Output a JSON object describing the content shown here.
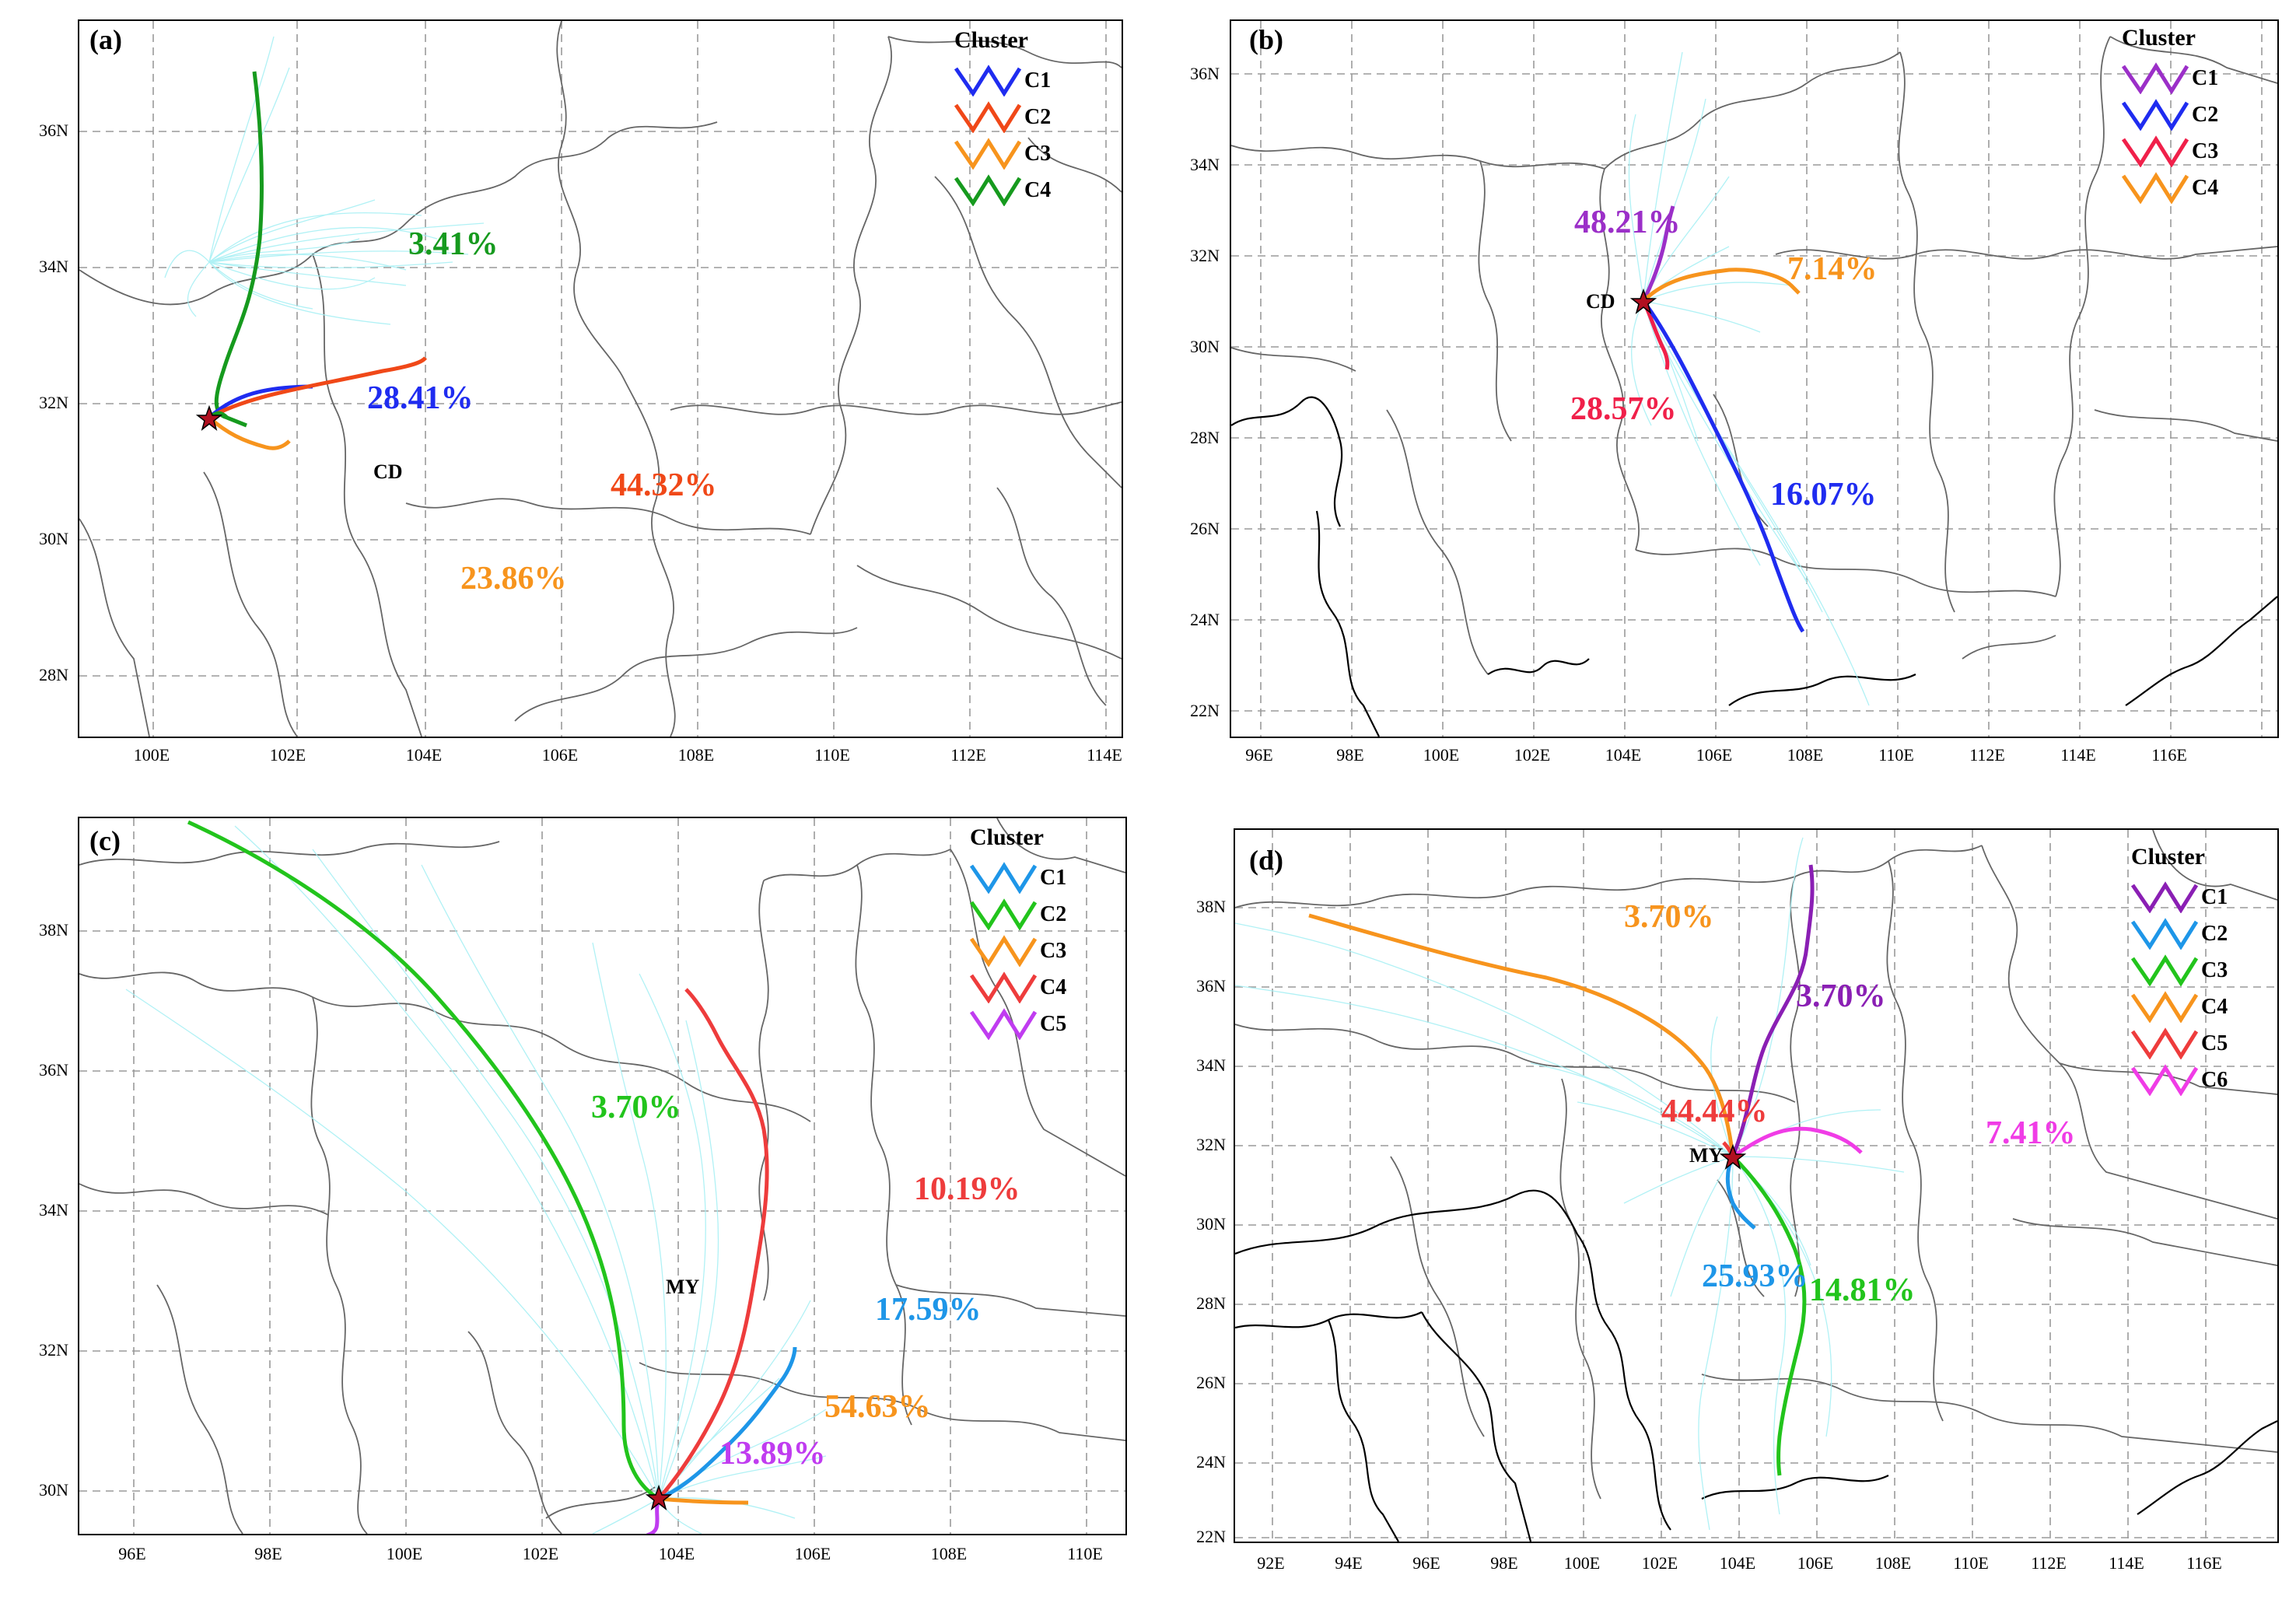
{
  "colors": {
    "background_trajectories": "#a8f0f4",
    "grid": "#9a9a9a",
    "boundary": "#555555",
    "country_border": "#000000",
    "star": "#b01020"
  },
  "panels": [
    {
      "label": "(a)",
      "site": "CD",
      "legend_title": "Cluster",
      "lon_ticks": [
        "100E",
        "102E",
        "104E",
        "106E",
        "108E",
        "110E",
        "112E",
        "114E"
      ],
      "lat_ticks": [
        "36N",
        "34N",
        "32N",
        "30N",
        "28N"
      ],
      "clusters": [
        {
          "name": "C1",
          "color": "#1f2cf0",
          "percent": "28.41%"
        },
        {
          "name": "C2",
          "color": "#f04818",
          "percent": "44.32%"
        },
        {
          "name": "C3",
          "color": "#f7941d",
          "percent": "23.86%"
        },
        {
          "name": "C4",
          "color": "#169a1e",
          "percent": "3.41%"
        }
      ]
    },
    {
      "label": "(b)",
      "site": "CD",
      "legend_title": "Cluster",
      "lon_ticks": [
        "96E",
        "98E",
        "100E",
        "102E",
        "104E",
        "106E",
        "108E",
        "110E",
        "112E",
        "114E",
        "116E"
      ],
      "lat_ticks": [
        "36N",
        "34N",
        "32N",
        "30N",
        "28N",
        "26N",
        "24N",
        "22N"
      ],
      "clusters": [
        {
          "name": "C1",
          "color": "#9b2fc8",
          "percent": "48.21%"
        },
        {
          "name": "C2",
          "color": "#1f2cf0",
          "percent": "16.07%"
        },
        {
          "name": "C3",
          "color": "#f0204a",
          "percent": "28.57%"
        },
        {
          "name": "C4",
          "color": "#f7941d",
          "percent": "7.14%"
        }
      ]
    },
    {
      "label": "(c)",
      "site": "MY",
      "legend_title": "Cluster",
      "lon_ticks": [
        "96E",
        "98E",
        "100E",
        "102E",
        "104E",
        "106E",
        "108E",
        "110E"
      ],
      "lat_ticks": [
        "38N",
        "36N",
        "34N",
        "32N",
        "30N"
      ],
      "clusters": [
        {
          "name": "C1",
          "color": "#1e96e8",
          "percent": "17.59%"
        },
        {
          "name": "C2",
          "color": "#22c41c",
          "percent": "3.70%"
        },
        {
          "name": "C3",
          "color": "#f7941d",
          "percent": "54.63%"
        },
        {
          "name": "C4",
          "color": "#ee3c3c",
          "percent": "10.19%"
        },
        {
          "name": "C5",
          "color": "#c03cf0",
          "percent": "13.89%"
        }
      ]
    },
    {
      "label": "(d)",
      "site": "MY",
      "legend_title": "Cluster",
      "lon_ticks": [
        "92E",
        "94E",
        "96E",
        "98E",
        "100E",
        "102E",
        "104E",
        "106E",
        "108E",
        "110E",
        "112E",
        "114E",
        "116E"
      ],
      "lat_ticks": [
        "38N",
        "36N",
        "34N",
        "32N",
        "30N",
        "28N",
        "26N",
        "24N",
        "22N"
      ],
      "clusters": [
        {
          "name": "C1",
          "color": "#8a1fb4",
          "percent": "3.70%"
        },
        {
          "name": "C2",
          "color": "#1e96e8",
          "percent": "25.93%"
        },
        {
          "name": "C3",
          "color": "#22c41c",
          "percent": "14.81%"
        },
        {
          "name": "C4",
          "color": "#f7941d",
          "percent": "3.70%"
        },
        {
          "name": "C5",
          "color": "#ee3c3c",
          "percent": "44.44%"
        },
        {
          "name": "C6",
          "color": "#f03ce6",
          "percent": "7.41%"
        }
      ]
    }
  ]
}
